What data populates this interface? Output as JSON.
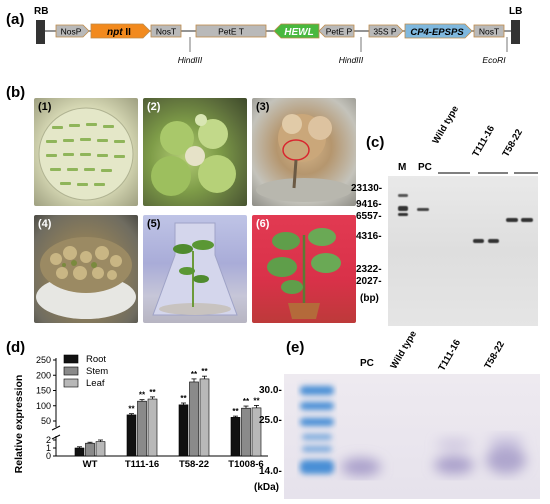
{
  "panels": {
    "a": "(a)",
    "b": "(b)",
    "c": "(c)",
    "d": "(d)",
    "e": "(e)"
  },
  "construct": {
    "rb": "RB",
    "lb": "LB",
    "elements": {
      "nosp": "NosP",
      "nptii_a": "npt",
      "nptii_b": " II",
      "nost1": "NosT",
      "petet": "PetE T",
      "hewl": "HEWL",
      "petep": "PetE P",
      "p35s": "35S P",
      "epsps": "CP4-EPSPS",
      "nost2": "NosT"
    },
    "sites": {
      "hind1": "HindIII",
      "hind2": "HindIII",
      "ecori": "EcoRI"
    },
    "colors": {
      "nptii": "#f28a1e",
      "hewl": "#49b83e",
      "epsps": "#7fb8de",
      "element": "#b9b9b9",
      "border": "#bf8b4a"
    }
  },
  "photos": {
    "p1": "(1)",
    "p2": "(2)",
    "p3": "(3)",
    "p4": "(4)",
    "p5": "(5)",
    "p6": "(6)"
  },
  "southern": {
    "lanes": {
      "m": "M",
      "pc": "PC",
      "wt": "Wild type",
      "t111": "T111-16",
      "t58": "T58-22"
    },
    "markers": [
      "23130-",
      "9416-",
      "6557-",
      "4316-",
      "2322-",
      "2027-"
    ],
    "unit": "(bp)"
  },
  "chart_data": {
    "type": "bar",
    "ylabel": "Relative expression",
    "categories": [
      "WT",
      "T111-16",
      "T58-22",
      "T1008-6"
    ],
    "series": [
      {
        "name": "Root",
        "values": [
          1.0,
          70,
          103,
          62
        ],
        "errors": [
          0.15,
          4,
          6,
          4
        ],
        "color": "#111111"
      },
      {
        "name": "Stem",
        "values": [
          1.6,
          115,
          178,
          92
        ],
        "errors": [
          0.12,
          5,
          10,
          7
        ],
        "color": "#8a8a8a"
      },
      {
        "name": "Leaf",
        "values": [
          1.8,
          122,
          188,
          93
        ],
        "errors": [
          0.2,
          7,
          9,
          8
        ],
        "color": "#b8b8b8"
      }
    ],
    "significance": [
      [
        "",
        "**",
        "**",
        "**"
      ],
      [
        "",
        "**",
        "**",
        "**"
      ],
      [
        "",
        "**",
        "**",
        "**"
      ]
    ],
    "yticks_lower": [
      "0",
      "1",
      "2"
    ],
    "yticks_upper": [
      "50",
      "100",
      "150",
      "200",
      "250"
    ],
    "legend_position": "top-left",
    "axis_break": true,
    "lower_range": [
      0,
      2
    ],
    "upper_range": [
      50,
      250
    ]
  },
  "western": {
    "lanes": {
      "pc": "PC",
      "wt": "Wild type",
      "t111": "T111-16",
      "t58": "T58-22"
    },
    "markers": [
      "30.0-",
      "25.0-",
      "14.0-"
    ],
    "unit": "(kDa)"
  }
}
